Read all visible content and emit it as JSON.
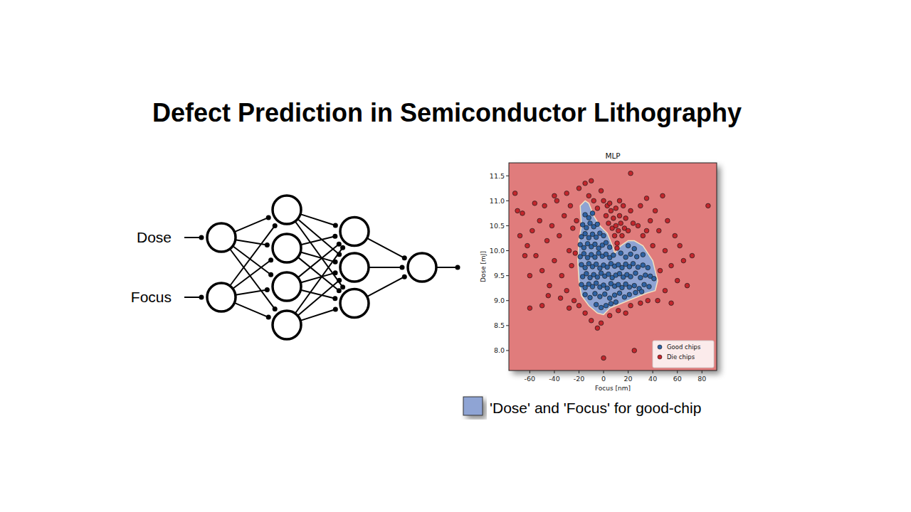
{
  "title": "Defect Prediction in Semiconductor Lithography",
  "diagram": {
    "inputs": [
      "Dose",
      "Focus"
    ],
    "layers": [
      2,
      4,
      3,
      1
    ]
  },
  "chart_data": {
    "type": "scatter",
    "title": "MLP",
    "x_label": "Focus [nm]",
    "y_label": "Dose [mJ]",
    "xlim": [
      -77,
      92
    ],
    "ylim": [
      7.6,
      11.76
    ],
    "xticks": [
      -60,
      -40,
      -20,
      0,
      20,
      40,
      60,
      80
    ],
    "yticks": [
      {
        "value": 8,
        "label": "8.0"
      },
      8.5,
      {
        "value": 9,
        "label": "9.0"
      },
      9.5,
      {
        "value": 10,
        "label": "10.0"
      },
      10.5,
      {
        "value": 11,
        "label": "11.0"
      },
      11.5
    ],
    "grid": false,
    "legend": "lower right",
    "region": {
      "name": "'Dose' and 'Focus' for good-chip",
      "color": "#8fa4d4",
      "x": [
        -15,
        -12,
        -8,
        -3,
        3,
        8,
        9,
        14,
        20,
        25,
        32,
        40,
        44,
        42,
        35,
        25,
        15,
        5,
        0,
        -5,
        -12,
        -18,
        -20,
        -21,
        -20,
        -18,
        -19
      ],
      "y": [
        11.0,
        10.95,
        10.7,
        10.5,
        10.35,
        10.05,
        9.95,
        10.1,
        10.2,
        10.2,
        10.1,
        9.8,
        9.4,
        9.2,
        9.15,
        9.05,
        8.95,
        8.85,
        8.72,
        8.75,
        8.9,
        9.1,
        9.4,
        9.8,
        10.2,
        10.5,
        10.9
      ]
    },
    "series": [
      {
        "name": "Good chips",
        "color": "#2f62a3",
        "marker": "circle",
        "x": [
          -15,
          -12,
          -9,
          -17,
          -14,
          -11,
          -8,
          -5,
          -18,
          -15,
          -12,
          -9,
          -6,
          -3,
          0,
          -19,
          -16,
          -13,
          -10,
          -7,
          -4,
          -1,
          2,
          5,
          20,
          25,
          -19,
          -16,
          -13,
          -10,
          -7,
          -4,
          -1,
          2,
          5,
          8,
          14,
          18,
          22,
          27,
          32,
          -18,
          -15,
          -12,
          -9,
          -6,
          -3,
          0,
          3,
          6,
          9,
          12,
          15,
          18,
          21,
          24,
          28,
          32,
          36,
          -17,
          -14,
          -11,
          -8,
          -5,
          -2,
          1,
          4,
          7,
          10,
          13,
          16,
          19,
          22,
          26,
          30,
          34,
          38,
          41,
          -18,
          -15,
          -12,
          -9,
          -6,
          -3,
          0,
          3,
          6,
          9,
          12,
          15,
          18,
          21,
          25,
          29,
          33,
          37,
          -15,
          -11,
          -7,
          -3,
          1,
          5,
          9,
          13,
          17,
          21,
          26,
          31,
          -6,
          -2,
          2,
          6,
          10
        ],
        "values": [
          10.72,
          10.66,
          10.75,
          10.52,
          10.46,
          10.55,
          10.48,
          10.53,
          10.28,
          10.34,
          10.26,
          10.33,
          10.27,
          10.35,
          10.3,
          10.12,
          10.06,
          10.14,
          10.08,
          10.13,
          10.05,
          10.11,
          10.16,
          10.07,
          10.1,
          10.04,
          9.88,
          9.94,
          9.86,
          9.92,
          9.87,
          9.95,
          9.89,
          9.93,
          9.86,
          9.91,
          9.95,
          9.87,
          9.93,
          9.88,
          9.92,
          9.72,
          9.66,
          9.74,
          9.68,
          9.73,
          9.65,
          9.71,
          9.67,
          9.74,
          9.69,
          9.72,
          9.66,
          9.73,
          9.68,
          9.74,
          9.67,
          9.71,
          9.66,
          9.48,
          9.54,
          9.46,
          9.52,
          9.47,
          9.55,
          9.49,
          9.53,
          9.46,
          9.51,
          9.54,
          9.47,
          9.52,
          9.48,
          9.55,
          9.46,
          9.51,
          9.49,
          9.44,
          9.32,
          9.26,
          9.33,
          9.28,
          9.35,
          9.27,
          9.31,
          9.25,
          9.34,
          9.29,
          9.32,
          9.26,
          9.33,
          9.27,
          9.3,
          9.24,
          9.32,
          9.28,
          9.12,
          9.06,
          9.14,
          9.08,
          9.13,
          9.05,
          9.11,
          9.15,
          9.07,
          9.12,
          9.16,
          9.18,
          8.92,
          8.86,
          8.9,
          8.94,
          8.97
        ]
      },
      {
        "name": "Die chips",
        "color": "#c3262c",
        "marker": "circle",
        "x": [
          -70,
          -66,
          -62,
          -58,
          -55,
          -52,
          -50,
          -48,
          -46,
          -44,
          -42,
          -40,
          -38,
          -36,
          -34,
          -32,
          -30,
          -28,
          -27,
          -26,
          -25,
          -24,
          -23,
          -22,
          -30,
          -40,
          -60,
          -56,
          -64,
          -68,
          -72,
          -45,
          -35,
          -50,
          -60,
          -28,
          -12,
          -8,
          -5,
          -2,
          0,
          3,
          -20,
          -15,
          22,
          -10,
          2,
          4,
          6,
          7,
          8,
          9,
          10,
          10,
          11,
          12,
          13,
          14,
          15,
          16,
          17,
          18,
          20,
          22,
          24,
          5,
          13,
          11,
          28,
          30,
          32,
          35,
          38,
          40,
          42,
          45,
          48,
          50,
          52,
          55,
          58,
          60,
          62,
          65,
          68,
          72,
          85,
          46,
          50,
          44,
          55,
          35,
          -20,
          -15,
          -10,
          -2,
          0,
          5,
          12,
          18,
          22,
          25,
          30,
          36,
          -5
        ],
        "values": [
          10.8,
          10.75,
          10.1,
          10.4,
          9.9,
          10.6,
          9.6,
          10.9,
          10.2,
          9.3,
          10.5,
          9.8,
          11.0,
          10.3,
          9.5,
          10.7,
          9.2,
          10.0,
          10.9,
          9.7,
          10.45,
          9.0,
          9.95,
          10.6,
          11.15,
          11.1,
          9.5,
          10.95,
          9.9,
          10.3,
          11.15,
          9.1,
          9.05,
          8.9,
          8.85,
          8.85,
          11.1,
          11.0,
          10.85,
          11.2,
          11.0,
          10.9,
          11.25,
          11.35,
          11.55,
          11.4,
          10.7,
          10.55,
          10.8,
          10.45,
          10.65,
          10.3,
          10.5,
          10.85,
          10.15,
          10.4,
          10.7,
          10.55,
          10.3,
          10.9,
          10.45,
          10.65,
          10.4,
          10.8,
          10.55,
          10.95,
          11.0,
          10.05,
          10.5,
          10.9,
          10.3,
          11.05,
          10.6,
          10.1,
          10.8,
          10.4,
          11.1,
          10.0,
          10.6,
          9.7,
          10.3,
          9.4,
          10.1,
          9.8,
          9.3,
          9.9,
          10.9,
          9.6,
          9.2,
          9.0,
          8.95,
          10.4,
          8.9,
          8.75,
          8.6,
          8.55,
          7.85,
          8.7,
          8.8,
          8.75,
          8.9,
          8.0,
          8.95,
          9.0,
          8.45
        ]
      }
    ]
  }
}
